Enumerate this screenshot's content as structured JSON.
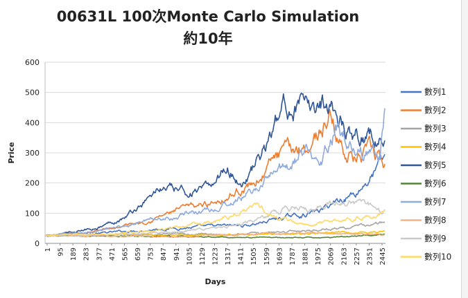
{
  "chart_data": {
    "type": "line",
    "title": "00631L 100次Monte Carlo Simulation",
    "subtitle": "約10年",
    "xlabel": "Days",
    "ylabel": "Price",
    "ylim": [
      0,
      600
    ],
    "yticks": [
      0,
      100,
      200,
      300,
      400,
      500,
      600
    ],
    "xlim": [
      1,
      2520
    ],
    "xticks": [
      "1",
      "95",
      "189",
      "283",
      "377",
      "471",
      "565",
      "659",
      "753",
      "847",
      "941",
      "1035",
      "1129",
      "1223",
      "1317",
      "1411",
      "1505",
      "1599",
      "1693",
      "1787",
      "1881",
      "1975",
      "2069",
      "2163",
      "2257",
      "2351",
      "2445"
    ],
    "grid": true,
    "legend_position": "right",
    "series": [
      {
        "name": "數列1",
        "color": "#4472C4",
        "anchors": [
          [
            1,
            25
          ],
          [
            300,
            30
          ],
          [
            600,
            40
          ],
          [
            900,
            50
          ],
          [
            1200,
            55
          ],
          [
            1500,
            60
          ],
          [
            1700,
            80
          ],
          [
            1900,
            95
          ],
          [
            2050,
            110
          ],
          [
            2150,
            140
          ],
          [
            2300,
            170
          ],
          [
            2400,
            215
          ],
          [
            2520,
            280
          ]
        ]
      },
      {
        "name": "數列2",
        "color": "#ED7D31",
        "anchors": [
          [
            1,
            25
          ],
          [
            300,
            35
          ],
          [
            500,
            50
          ],
          [
            700,
            70
          ],
          [
            850,
            90
          ],
          [
            1000,
            110
          ],
          [
            1200,
            130
          ],
          [
            1400,
            170
          ],
          [
            1550,
            200
          ],
          [
            1700,
            280
          ],
          [
            1850,
            310
          ],
          [
            1950,
            330
          ],
          [
            2050,
            380
          ],
          [
            2100,
            425
          ],
          [
            2200,
            320
          ],
          [
            2300,
            280
          ],
          [
            2420,
            300
          ],
          [
            2520,
            250
          ]
        ]
      },
      {
        "name": "數列3",
        "color": "#A5A5A5",
        "anchors": [
          [
            1,
            25
          ],
          [
            500,
            25
          ],
          [
            1000,
            30
          ],
          [
            1500,
            32
          ],
          [
            2000,
            45
          ],
          [
            2300,
            55
          ],
          [
            2520,
            68
          ]
        ]
      },
      {
        "name": "數列4",
        "color": "#FFC000",
        "anchors": [
          [
            1,
            25
          ],
          [
            500,
            28
          ],
          [
            1000,
            28
          ],
          [
            1500,
            30
          ],
          [
            2000,
            32
          ],
          [
            2520,
            40
          ]
        ]
      },
      {
        "name": "數列5",
        "color": "#2F5597",
        "anchors": [
          [
            1,
            25
          ],
          [
            200,
            35
          ],
          [
            400,
            55
          ],
          [
            600,
            90
          ],
          [
            750,
            140
          ],
          [
            850,
            185
          ],
          [
            1000,
            170
          ],
          [
            1200,
            175
          ],
          [
            1350,
            260
          ],
          [
            1450,
            200
          ],
          [
            1550,
            250
          ],
          [
            1650,
            330
          ],
          [
            1750,
            430
          ],
          [
            1850,
            475
          ],
          [
            1950,
            420
          ],
          [
            2050,
            470
          ],
          [
            2100,
            490
          ],
          [
            2200,
            400
          ],
          [
            2300,
            370
          ],
          [
            2420,
            360
          ],
          [
            2520,
            330
          ]
        ]
      },
      {
        "name": "數列6",
        "color": "#548235",
        "anchors": [
          [
            1,
            25
          ],
          [
            500,
            24
          ],
          [
            1000,
            22
          ],
          [
            1500,
            20
          ],
          [
            2000,
            18
          ],
          [
            2520,
            30
          ]
        ]
      },
      {
        "name": "數列7",
        "color": "#8FAADC",
        "anchors": [
          [
            1,
            25
          ],
          [
            400,
            40
          ],
          [
            800,
            80
          ],
          [
            1100,
            100
          ],
          [
            1300,
            120
          ],
          [
            1500,
            160
          ],
          [
            1700,
            230
          ],
          [
            1900,
            290
          ],
          [
            2050,
            300
          ],
          [
            2150,
            400
          ],
          [
            2250,
            350
          ],
          [
            2350,
            300
          ],
          [
            2480,
            280
          ],
          [
            2520,
            465
          ]
        ]
      },
      {
        "name": "數列8",
        "color": "#F4B183",
        "anchors": [
          [
            1,
            25
          ],
          [
            500,
            25
          ],
          [
            1000,
            22
          ],
          [
            1500,
            30
          ],
          [
            2000,
            35
          ],
          [
            2520,
            28
          ]
        ]
      },
      {
        "name": "數列9",
        "color": "#C9C9C9",
        "anchors": [
          [
            1,
            25
          ],
          [
            500,
            30
          ],
          [
            1000,
            40
          ],
          [
            1400,
            60
          ],
          [
            1600,
            80
          ],
          [
            1800,
            120
          ],
          [
            2000,
            110
          ],
          [
            2200,
            145
          ],
          [
            2400,
            125
          ],
          [
            2520,
            105
          ]
        ]
      },
      {
        "name": "數列10",
        "color": "#FFD966",
        "anchors": [
          [
            1,
            25
          ],
          [
            400,
            30
          ],
          [
            800,
            40
          ],
          [
            1200,
            70
          ],
          [
            1400,
            100
          ],
          [
            1550,
            130
          ],
          [
            1700,
            90
          ],
          [
            1900,
            60
          ],
          [
            2100,
            70
          ],
          [
            2300,
            85
          ],
          [
            2520,
            105
          ]
        ]
      }
    ]
  }
}
